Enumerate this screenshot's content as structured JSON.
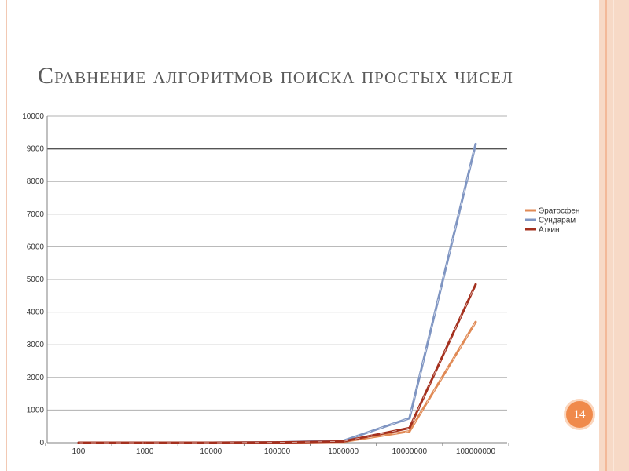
{
  "slide": {
    "title": "Сравнение алгоритмов поиска простых чисел",
    "page_number": "14",
    "accent_color": "#f08a4b"
  },
  "chart_data": {
    "type": "line",
    "title": "",
    "xlabel": "",
    "ylabel": "",
    "categories": [
      "100",
      "1000",
      "10000",
      "100000",
      "1000000",
      "10000000",
      "100000000"
    ],
    "ylim": [
      0,
      10000
    ],
    "yticks": [
      0,
      1000,
      2000,
      3000,
      4000,
      5000,
      6000,
      7000,
      8000,
      9000,
      10000
    ],
    "grid": true,
    "legend_position": "right",
    "series": [
      {
        "name": "Эратосфен",
        "color": "#e08a55",
        "values": [
          0,
          0,
          0,
          5,
          30,
          350,
          3700
        ]
      },
      {
        "name": "Сундарам",
        "color": "#7f95c2",
        "values": [
          0,
          0,
          0,
          10,
          60,
          750,
          9150
        ]
      },
      {
        "name": "Аткин",
        "color": "#a4301e",
        "values": [
          0,
          0,
          0,
          8,
          40,
          450,
          4850
        ]
      }
    ]
  }
}
